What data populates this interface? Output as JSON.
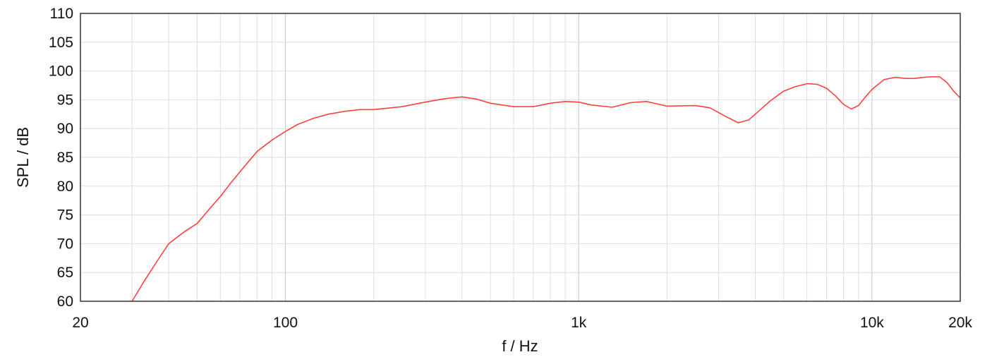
{
  "chart_data": {
    "type": "line",
    "title": "",
    "xlabel": "f / Hz",
    "ylabel": "SPL / dB",
    "x_scale": "log",
    "xlim": [
      20,
      20000
    ],
    "ylim": [
      60,
      110
    ],
    "x_ticks": [
      {
        "value": 20,
        "label": "20"
      },
      {
        "value": 100,
        "label": "100"
      },
      {
        "value": 1000,
        "label": "1k"
      },
      {
        "value": 10000,
        "label": "10k"
      },
      {
        "value": 20000,
        "label": "20k"
      }
    ],
    "y_ticks": [
      60,
      65,
      70,
      75,
      80,
      85,
      90,
      95,
      100,
      105,
      110
    ],
    "grid": true,
    "legend": "none",
    "series": [
      {
        "color": "#ff4040",
        "x": [
          30,
          33,
          36,
          40,
          45,
          50,
          55,
          60,
          65,
          70,
          80,
          90,
          100,
          110,
          125,
          140,
          160,
          180,
          200,
          250,
          300,
          350,
          400,
          450,
          500,
          600,
          700,
          800,
          900,
          1000,
          1100,
          1300,
          1500,
          1700,
          2000,
          2500,
          2800,
          3200,
          3500,
          3800,
          4000,
          4500,
          5000,
          5500,
          6000,
          6500,
          7000,
          7500,
          8000,
          8500,
          9000,
          9500,
          10000,
          11000,
          12000,
          13000,
          14000,
          15000,
          16000,
          17000,
          18000,
          19000,
          20000
        ],
        "y": [
          60,
          63.5,
          66.5,
          70,
          72,
          73.5,
          76,
          78.2,
          80.5,
          82.5,
          86,
          88,
          89.5,
          90.7,
          91.8,
          92.5,
          93,
          93.3,
          93.3,
          93.8,
          94.6,
          95.2,
          95.5,
          95.1,
          94.4,
          93.8,
          93.8,
          94.4,
          94.7,
          94.6,
          94.1,
          93.7,
          94.5,
          94.7,
          93.9,
          94,
          93.6,
          92,
          91,
          91.5,
          92.5,
          94.8,
          96.5,
          97.3,
          97.8,
          97.7,
          97,
          95.7,
          94.2,
          93.4,
          94,
          95.5,
          96.8,
          98.5,
          98.9,
          98.7,
          98.7,
          98.9,
          99,
          99,
          98,
          96.5,
          95.3
        ]
      }
    ]
  }
}
